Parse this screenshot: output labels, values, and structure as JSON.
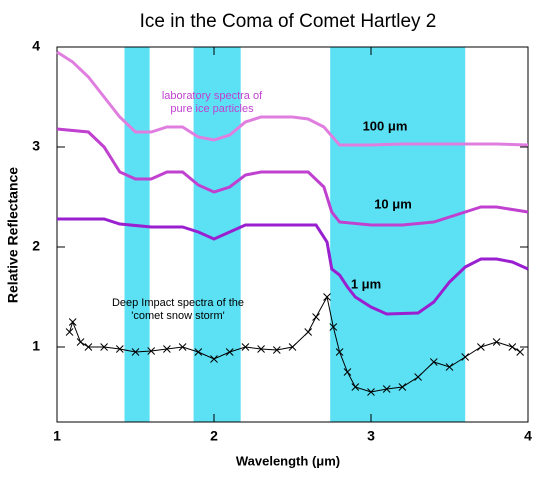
{
  "chart_data": {
    "type": "line",
    "title": "Ice in the Coma of Comet Hartley 2",
    "x_label": "Wavelength (μm)",
    "y_label": "Relative Reflectance",
    "xlim": [
      1,
      4
    ],
    "ylim": [
      0.25,
      4
    ],
    "xticks": [
      1,
      2,
      3,
      4
    ],
    "yticks": [
      1,
      2,
      3,
      4
    ],
    "band_color": "#5ce1f4",
    "bands": [
      [
        1.43,
        1.59
      ],
      [
        1.87,
        2.17
      ],
      [
        2.74,
        3.6
      ]
    ],
    "series": [
      {
        "name": "100 μm",
        "color": "#e07ee0",
        "marker": "none",
        "x": [
          1.0,
          1.1,
          1.2,
          1.3,
          1.4,
          1.5,
          1.6,
          1.7,
          1.8,
          1.9,
          2.0,
          2.1,
          2.2,
          2.3,
          2.4,
          2.5,
          2.6,
          2.7,
          2.8,
          3.0,
          3.2,
          3.4,
          3.6,
          3.8,
          4.0
        ],
        "values": [
          3.95,
          3.85,
          3.7,
          3.5,
          3.3,
          3.15,
          3.15,
          3.2,
          3.2,
          3.1,
          3.07,
          3.12,
          3.25,
          3.3,
          3.3,
          3.3,
          3.28,
          3.2,
          3.02,
          3.02,
          3.03,
          3.03,
          3.03,
          3.03,
          3.02
        ]
      },
      {
        "name": "10 μm",
        "color": "#c040d0",
        "marker": "none",
        "x": [
          1.0,
          1.2,
          1.3,
          1.4,
          1.5,
          1.6,
          1.7,
          1.8,
          1.9,
          2.0,
          2.1,
          2.2,
          2.3,
          2.4,
          2.6,
          2.7,
          2.75,
          2.8,
          3.0,
          3.2,
          3.4,
          3.6,
          3.7,
          3.8,
          4.0
        ],
        "values": [
          3.18,
          3.15,
          3.0,
          2.75,
          2.68,
          2.68,
          2.75,
          2.75,
          2.62,
          2.55,
          2.6,
          2.72,
          2.75,
          2.75,
          2.75,
          2.6,
          2.35,
          2.25,
          2.22,
          2.22,
          2.25,
          2.35,
          2.4,
          2.4,
          2.35
        ]
      },
      {
        "name": "1 μm",
        "color": "#9a1fd0",
        "marker": "none",
        "x": [
          1.0,
          1.3,
          1.4,
          1.6,
          1.8,
          1.9,
          2.0,
          2.1,
          2.2,
          2.4,
          2.65,
          2.72,
          2.75,
          2.8,
          2.85,
          2.9,
          3.0,
          3.1,
          3.3,
          3.4,
          3.5,
          3.6,
          3.7,
          3.8,
          3.9,
          4.0
        ],
        "values": [
          2.28,
          2.28,
          2.23,
          2.2,
          2.2,
          2.15,
          2.08,
          2.15,
          2.22,
          2.22,
          2.22,
          2.05,
          1.78,
          1.72,
          1.6,
          1.5,
          1.4,
          1.33,
          1.34,
          1.45,
          1.65,
          1.8,
          1.88,
          1.88,
          1.85,
          1.78
        ]
      },
      {
        "color": "#000000",
        "marker": "x",
        "x": [
          1.08,
          1.1,
          1.15,
          1.2,
          1.3,
          1.4,
          1.5,
          1.6,
          1.7,
          1.8,
          1.9,
          2.0,
          2.1,
          2.2,
          2.3,
          2.4,
          2.5,
          2.6,
          2.65,
          2.72,
          2.76,
          2.8,
          2.85,
          2.9,
          3.0,
          3.1,
          3.2,
          3.3,
          3.4,
          3.5,
          3.6,
          3.7,
          3.8,
          3.9,
          3.95
        ],
        "values": [
          1.15,
          1.25,
          1.05,
          1.0,
          1.0,
          0.98,
          0.95,
          0.96,
          0.98,
          1.0,
          0.95,
          0.88,
          0.95,
          1.0,
          0.98,
          0.97,
          1.0,
          1.15,
          1.3,
          1.5,
          1.2,
          0.95,
          0.75,
          0.6,
          0.55,
          0.58,
          0.6,
          0.7,
          0.85,
          0.8,
          0.9,
          1.0,
          1.05,
          1.0,
          0.95
        ]
      }
    ],
    "annotations": [
      {
        "lines": [
          "laboratory spectra of",
          "pure ice particles"
        ],
        "color": "#c040d0"
      },
      {
        "lines": [
          "Deep Impact spectra of the",
          "'comet snow storm'"
        ],
        "color": "#000000"
      }
    ]
  }
}
